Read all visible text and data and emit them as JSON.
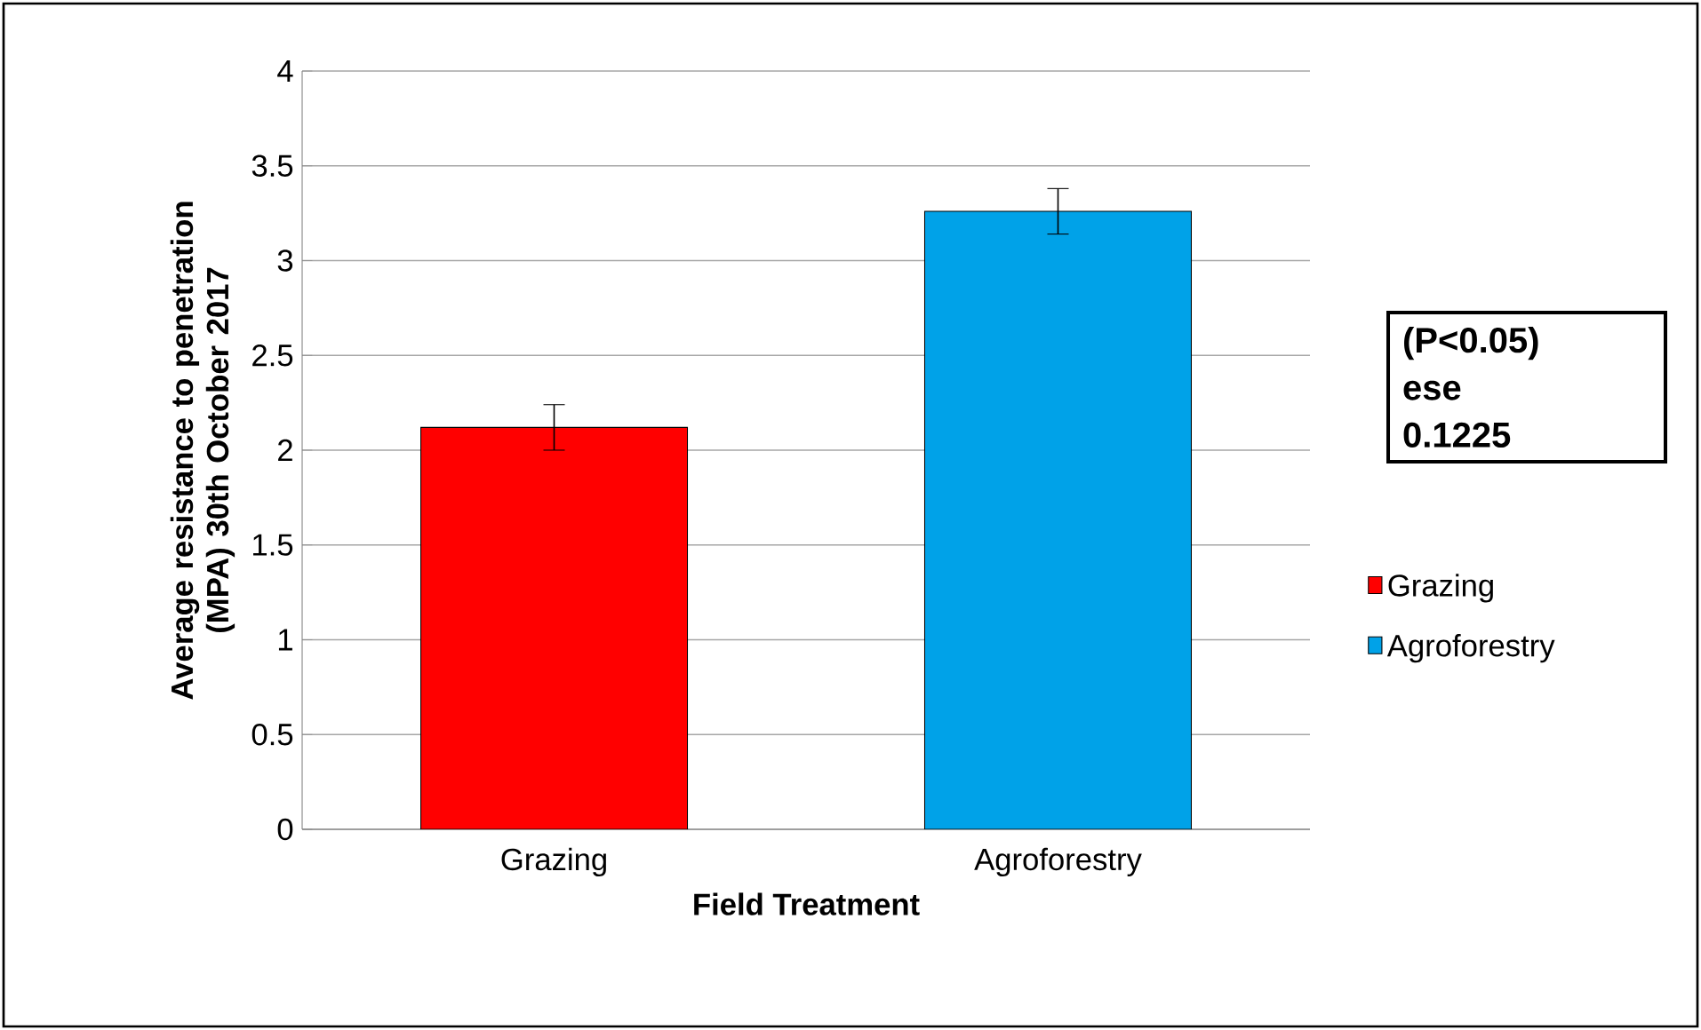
{
  "chart_data": {
    "type": "bar",
    "xlabel": "Field Treatment",
    "ylabel": "Average resistance to penetration (MPA) 30th October 2017",
    "categories": [
      "Grazing",
      "Agroforestry"
    ],
    "series": [
      {
        "name": "Grazing",
        "color": "#ff0000",
        "values": [
          2.12,
          null
        ],
        "errors": [
          0.12,
          null
        ]
      },
      {
        "name": "Agroforestry",
        "color": "#00a2e8",
        "values": [
          null,
          3.26
        ],
        "errors": [
          null,
          0.12
        ]
      }
    ],
    "ylim": [
      0,
      4
    ],
    "yticks": [
      0,
      0.5,
      1,
      1.5,
      2,
      2.5,
      3,
      3.5,
      4
    ],
    "grid": "y",
    "legend": "right",
    "annotations": [
      "(P<0.05)",
      "ese",
      "0.1225"
    ]
  }
}
